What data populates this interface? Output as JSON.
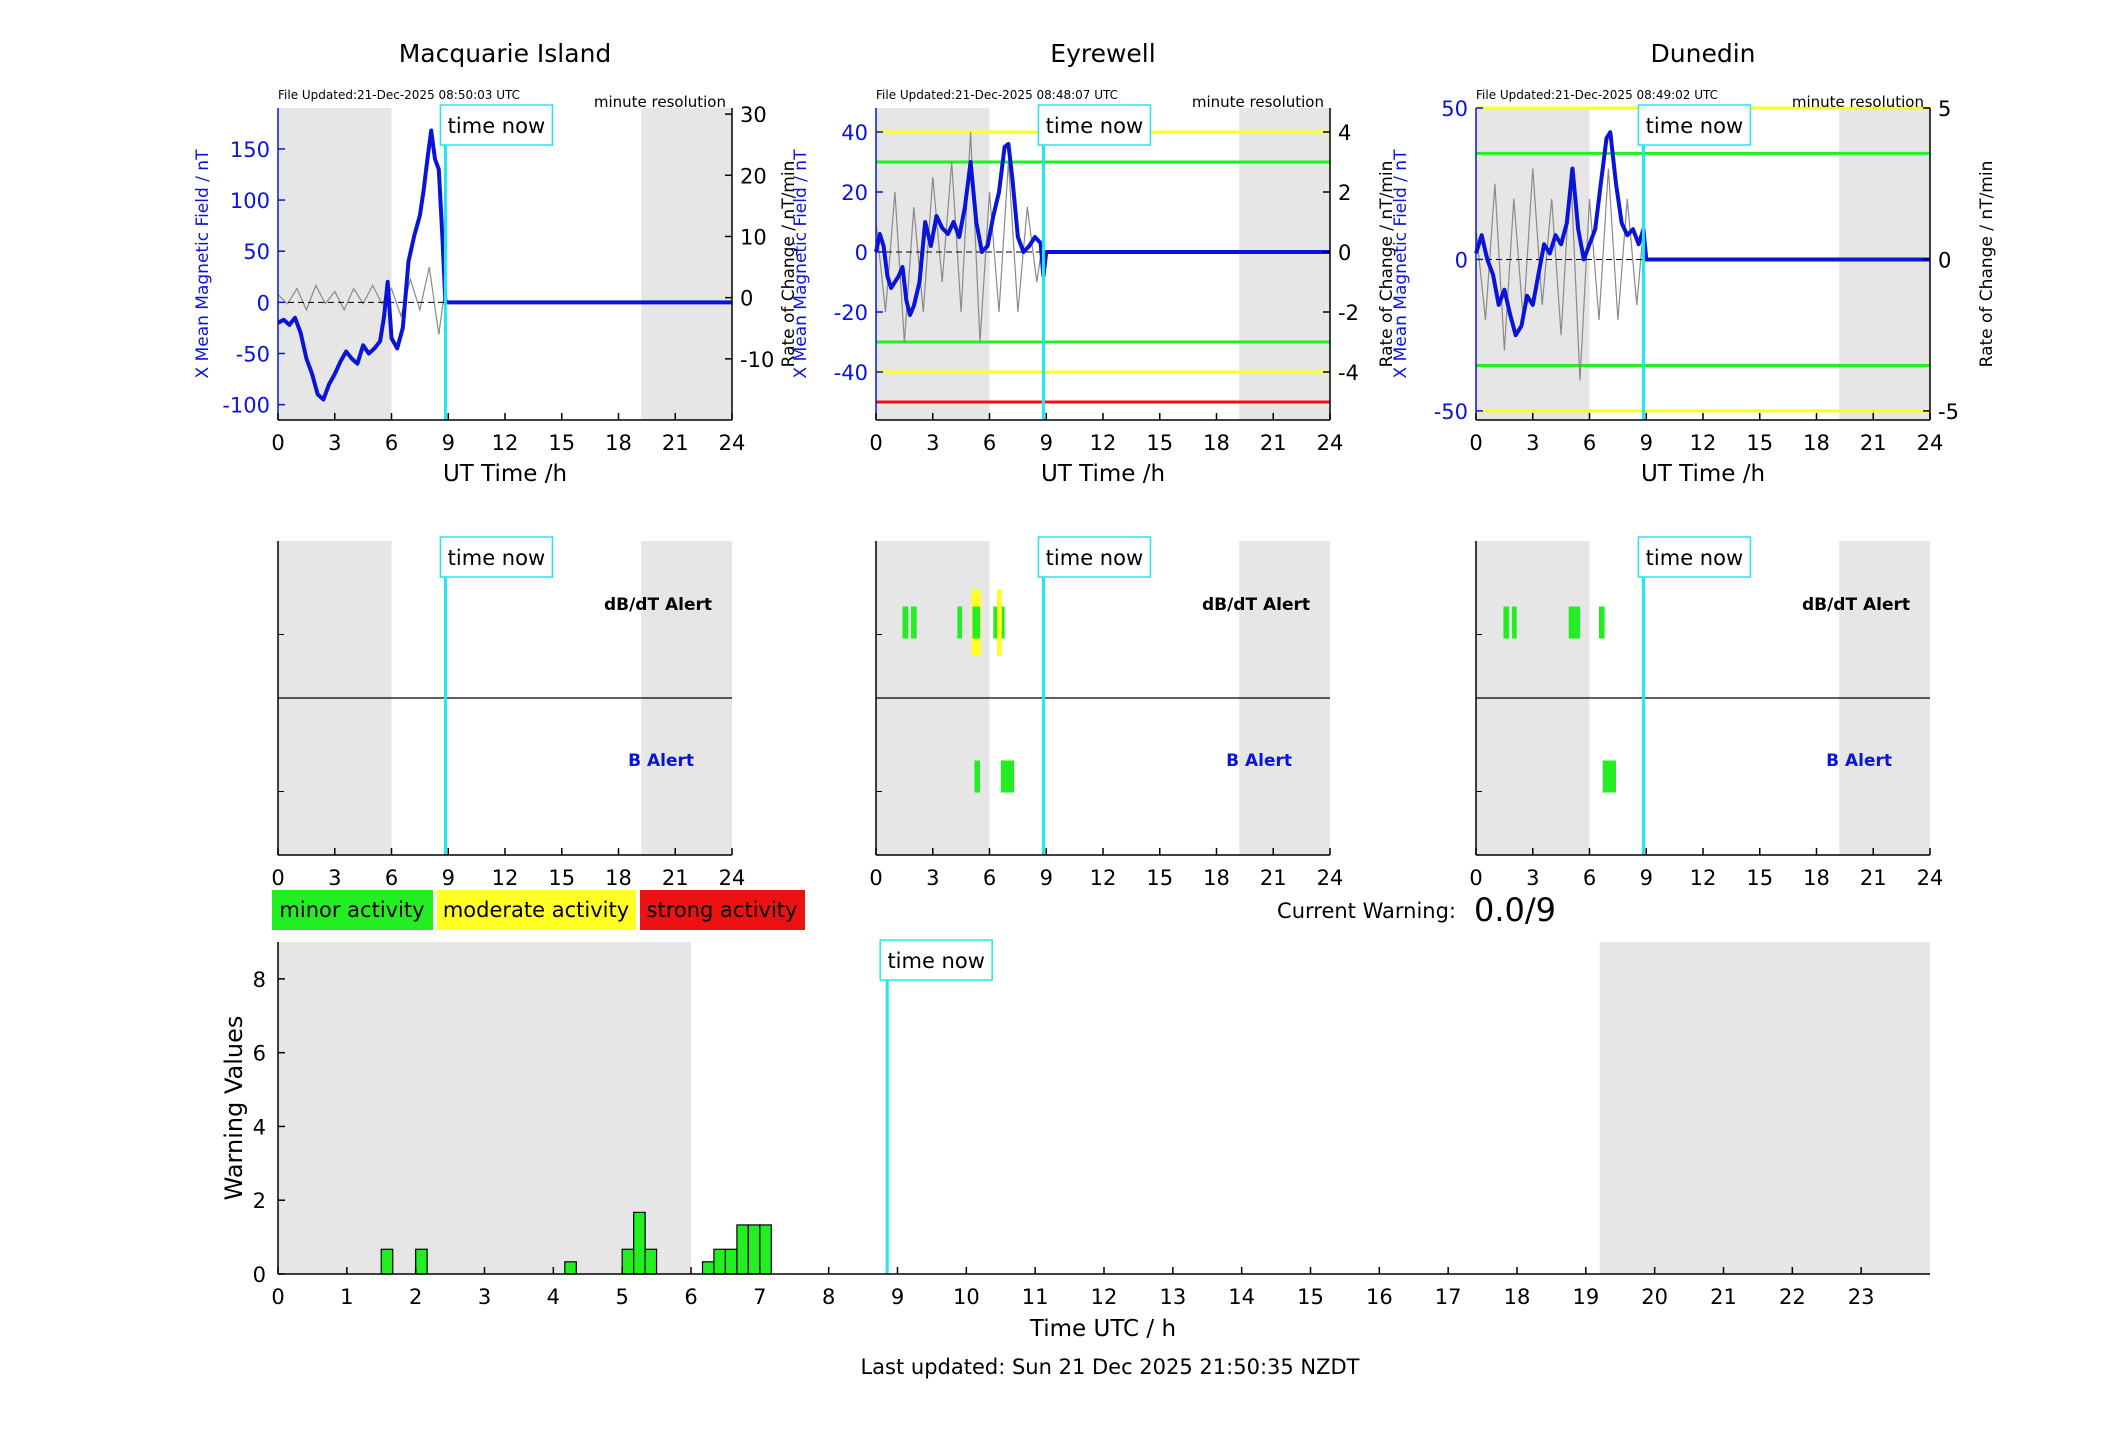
{
  "colors": {
    "blue": "#0a14d8",
    "cyan": "#22e6f0",
    "green": "#22ee22",
    "yellow": "#ffff22",
    "red": "#ee1111",
    "night_shade": "#e6e6e6",
    "grey_trace": "#8a8a8a"
  },
  "common": {
    "time_now_label": "time now",
    "time_now_hour": 8.85,
    "xlabel_top": "UT Time /h",
    "ylabel_left": "X Mean Magnetic Field / nT",
    "ylabel_right": "Rate of Change / nT/min",
    "resolution": "minute resolution",
    "dbdt_alert_label": "dB/dT Alert",
    "b_alert_label": "B Alert",
    "x_ticks": [
      "0",
      "3",
      "6",
      "9",
      "12",
      "15",
      "18",
      "21",
      "24"
    ],
    "night_intervals": [
      [
        0,
        6
      ],
      [
        19.2,
        24
      ]
    ]
  },
  "legend": {
    "minor": "minor activity",
    "moderate": "moderate activity",
    "strong": "strong activity"
  },
  "current_warning": {
    "label": "Current Warning:",
    "value": "0.0/9"
  },
  "footer": {
    "last_updated": "Last updated: Sun 21 Dec 2025 21:50:35 NZDT"
  },
  "chart_data": [
    {
      "type": "line",
      "station": "Macquarie Island",
      "file_updated": "File Updated:21-Dec-2025 08:50:03 UTC",
      "xlim": [
        0,
        24
      ],
      "ylim_left": [
        -115,
        190
      ],
      "ylim_right": [
        -20,
        31
      ],
      "left_ticks": [
        "150",
        "100",
        "50",
        "0",
        "-50",
        "-100"
      ],
      "left_tick_values": [
        150,
        100,
        50,
        0,
        -50,
        -100
      ],
      "right_ticks": [
        "30",
        "20",
        "10",
        "0",
        "-10"
      ],
      "right_tick_values": [
        30,
        20,
        10,
        0,
        -10
      ],
      "thresholds": [],
      "series_x": {
        "x": [
          0,
          0.3,
          0.6,
          0.9,
          1.2,
          1.5,
          1.8,
          2.1,
          2.4,
          2.7,
          3.0,
          3.3,
          3.6,
          3.9,
          4.2,
          4.5,
          4.8,
          5.1,
          5.4,
          5.6,
          5.8,
          6.0,
          6.3,
          6.6,
          6.9,
          7.2,
          7.5,
          7.7,
          7.9,
          8.1,
          8.3,
          8.5,
          8.7,
          8.85,
          9.5,
          24
        ],
        "y": [
          -20,
          -17,
          -22,
          -15,
          -30,
          -55,
          -70,
          -90,
          -95,
          -80,
          -70,
          -58,
          -48,
          -55,
          -60,
          -42,
          -50,
          -45,
          -38,
          -15,
          20,
          -35,
          -45,
          -25,
          40,
          65,
          85,
          110,
          140,
          168,
          140,
          130,
          60,
          0,
          0,
          0
        ]
      },
      "series_rate": {
        "x": [
          0,
          0.5,
          1.0,
          1.5,
          2.0,
          2.5,
          3.0,
          3.5,
          4.0,
          4.5,
          5.0,
          5.5,
          6.0,
          6.5,
          7.0,
          7.5,
          8.0,
          8.5,
          8.85
        ],
        "y": [
          0.5,
          -1,
          1.5,
          -2,
          2,
          -1,
          1,
          -2,
          1.5,
          -1,
          2,
          -1,
          1.5,
          -3,
          3,
          -2,
          5,
          -6,
          2
        ]
      },
      "dbdt_alerts": [],
      "b_alerts": []
    },
    {
      "type": "line",
      "station": "Eyrewell",
      "file_updated": "File Updated:21-Dec-2025 08:48:07 UTC",
      "xlim": [
        0,
        24
      ],
      "ylim_left": [
        -56,
        48
      ],
      "ylim_right": [
        -5.6,
        4.8
      ],
      "left_ticks": [
        "40",
        "20",
        "0",
        "-20",
        "-40"
      ],
      "left_tick_values": [
        40,
        20,
        0,
        -20,
        -40
      ],
      "right_ticks": [
        "4",
        "2",
        "0",
        "-2",
        "-4"
      ],
      "right_tick_values": [
        4,
        2,
        0,
        -2,
        -4
      ],
      "thresholds": [
        {
          "value": 40,
          "color": "yellow"
        },
        {
          "value": 30,
          "color": "green"
        },
        {
          "value": -30,
          "color": "green"
        },
        {
          "value": -40,
          "color": "yellow"
        },
        {
          "value": -50,
          "color": "red"
        }
      ],
      "series_x": {
        "x": [
          0,
          0.2,
          0.4,
          0.6,
          0.8,
          1.0,
          1.2,
          1.4,
          1.6,
          1.8,
          2.0,
          2.3,
          2.6,
          2.9,
          3.2,
          3.5,
          3.8,
          4.1,
          4.4,
          4.7,
          5.0,
          5.3,
          5.6,
          5.9,
          6.2,
          6.5,
          6.8,
          7.0,
          7.2,
          7.5,
          7.8,
          8.1,
          8.4,
          8.7,
          8.85,
          9.0,
          24
        ],
        "y": [
          0,
          6,
          2,
          -8,
          -12,
          -10,
          -8,
          -5,
          -16,
          -21,
          -18,
          -10,
          10,
          2,
          12,
          8,
          6,
          10,
          5,
          15,
          30,
          10,
          0,
          2,
          12,
          20,
          35,
          36,
          25,
          5,
          0,
          2,
          5,
          3,
          -8,
          0,
          0
        ]
      },
      "series_rate": {
        "x": [
          0,
          0.5,
          1.0,
          1.5,
          2.0,
          2.5,
          3.0,
          3.5,
          4.0,
          4.5,
          5.0,
          5.5,
          6.0,
          6.5,
          7.0,
          7.5,
          8.0,
          8.5,
          8.85
        ],
        "y": [
          1,
          -2,
          2,
          -3,
          1.5,
          -2,
          2.5,
          -1,
          3,
          -2,
          4,
          -3,
          2,
          -2,
          3,
          -2,
          1.5,
          -1,
          0.5
        ]
      },
      "dbdt_alerts": [
        {
          "start": 1.4,
          "end": 1.7,
          "color": "green"
        },
        {
          "start": 1.85,
          "end": 2.15,
          "color": "green"
        },
        {
          "start": 4.3,
          "end": 4.55,
          "color": "green"
        },
        {
          "start": 5.05,
          "end": 5.55,
          "color": "yellow"
        },
        {
          "start": 5.1,
          "end": 5.5,
          "color": "green"
        },
        {
          "start": 6.2,
          "end": 6.8,
          "color": "green"
        },
        {
          "start": 6.4,
          "end": 6.65,
          "color": "yellow"
        }
      ],
      "b_alerts": [
        {
          "start": 5.2,
          "end": 5.5,
          "color": "green"
        },
        {
          "start": 6.6,
          "end": 7.3,
          "color": "green"
        }
      ]
    },
    {
      "type": "line",
      "station": "Dunedin",
      "file_updated": "File Updated:21-Dec-2025 08:49:02 UTC",
      "xlim": [
        0,
        24
      ],
      "ylim_left": [
        -53,
        50
      ],
      "ylim_right": [
        -5.3,
        5.0
      ],
      "left_ticks": [
        "50",
        "0",
        "-50"
      ],
      "left_tick_values": [
        50,
        0,
        -50
      ],
      "right_ticks": [
        "5",
        "0",
        "-5"
      ],
      "right_tick_values": [
        5,
        0,
        -5
      ],
      "thresholds": [
        {
          "value": 50,
          "color": "yellow"
        },
        {
          "value": 35,
          "color": "green"
        },
        {
          "value": -35,
          "color": "green"
        },
        {
          "value": -50,
          "color": "yellow"
        }
      ],
      "series_x": {
        "x": [
          0,
          0.3,
          0.6,
          0.9,
          1.2,
          1.5,
          1.8,
          2.1,
          2.4,
          2.7,
          3.0,
          3.3,
          3.6,
          3.9,
          4.2,
          4.5,
          4.8,
          5.1,
          5.4,
          5.7,
          6.0,
          6.3,
          6.6,
          6.9,
          7.1,
          7.4,
          7.7,
          8.0,
          8.3,
          8.6,
          8.85,
          9.0,
          24
        ],
        "y": [
          2,
          8,
          0,
          -5,
          -15,
          -10,
          -18,
          -25,
          -22,
          -12,
          -15,
          -5,
          5,
          2,
          8,
          5,
          12,
          30,
          10,
          0,
          5,
          10,
          25,
          40,
          42,
          25,
          12,
          8,
          10,
          5,
          10,
          0,
          0
        ]
      },
      "series_rate": {
        "x": [
          0,
          0.5,
          1.0,
          1.5,
          2.0,
          2.5,
          3.0,
          3.5,
          4.0,
          4.5,
          5.0,
          5.5,
          6.0,
          6.5,
          7.0,
          7.5,
          8.0,
          8.5,
          8.85
        ],
        "y": [
          1,
          -2,
          2.5,
          -3,
          2,
          -2,
          3,
          -1.5,
          2,
          -2.5,
          3,
          -4,
          2,
          -2,
          3,
          -2,
          2,
          -1.5,
          1
        ]
      },
      "dbdt_alerts": [
        {
          "start": 1.45,
          "end": 1.75,
          "color": "green"
        },
        {
          "start": 1.9,
          "end": 2.15,
          "color": "green"
        },
        {
          "start": 4.9,
          "end": 5.5,
          "color": "green"
        },
        {
          "start": 6.5,
          "end": 6.8,
          "color": "green"
        }
      ],
      "b_alerts": [
        {
          "start": 6.7,
          "end": 7.4,
          "color": "green"
        }
      ]
    },
    {
      "type": "bar",
      "xlabel": "Time UTC / h",
      "ylabel": "Warning Values",
      "xlim": [
        0,
        24
      ],
      "ylim": [
        0,
        9
      ],
      "x_ticks": [
        "0",
        "1",
        "2",
        "3",
        "4",
        "5",
        "6",
        "7",
        "8",
        "9",
        "10",
        "11",
        "12",
        "13",
        "14",
        "15",
        "16",
        "17",
        "18",
        "19",
        "20",
        "21",
        "22",
        "23"
      ],
      "y_ticks": [
        "0",
        "2",
        "4",
        "6",
        "8"
      ],
      "bar_width_h": 0.1667,
      "night_intervals": [
        [
          0,
          6
        ],
        [
          19.2,
          24
        ]
      ],
      "x": [
        1.5,
        2.0,
        4.167,
        5.0,
        5.167,
        5.333,
        6.167,
        6.333,
        6.5,
        6.667,
        6.833,
        7.0
      ],
      "values": [
        0.67,
        0.67,
        0.33,
        0.67,
        1.67,
        0.67,
        0.33,
        0.67,
        0.67,
        1.33,
        1.33,
        1.33
      ]
    }
  ]
}
